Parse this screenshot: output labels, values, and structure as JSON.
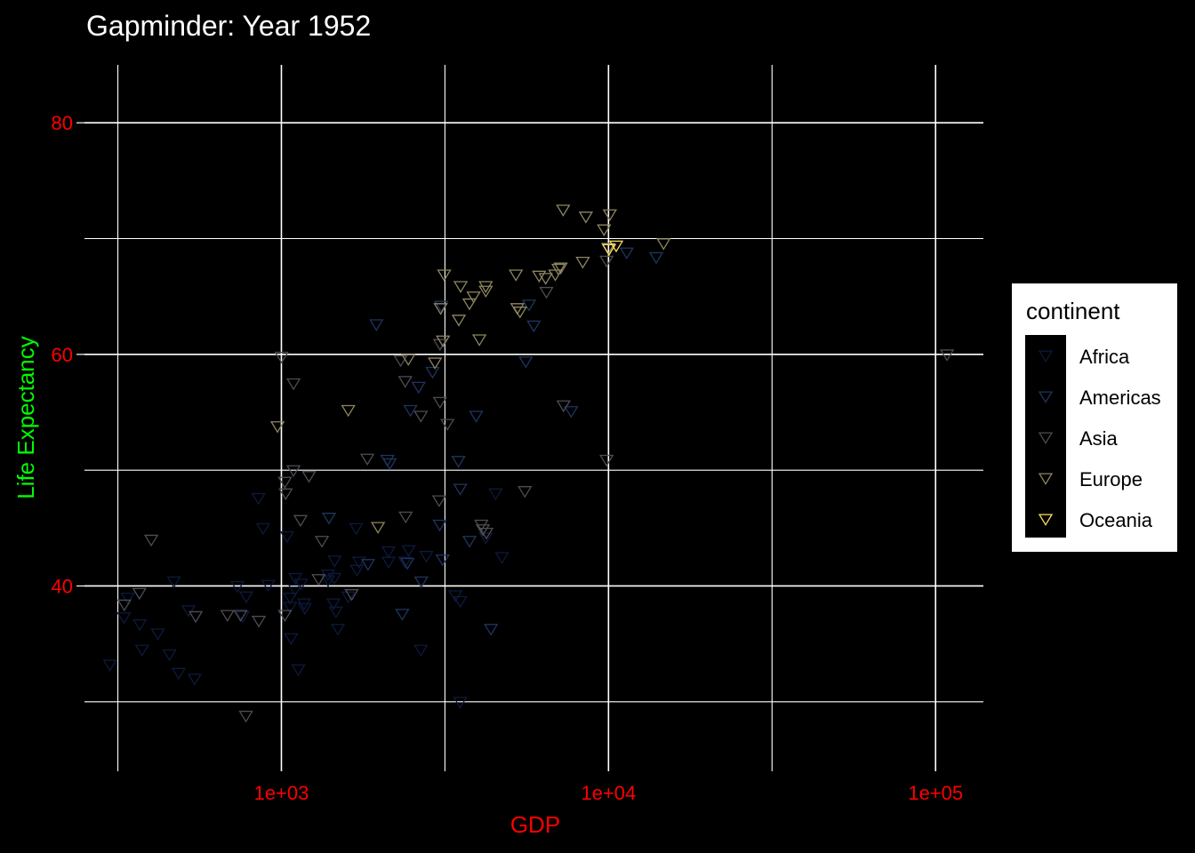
{
  "chart_data": {
    "type": "scatter",
    "title": "Gapminder: Year 1952",
    "xlabel": "GDP",
    "ylabel": "Life Expectancy",
    "x_scale": "log10",
    "xlim": [
      250,
      140000
    ],
    "ylim": [
      24,
      85
    ],
    "x_ticks": [
      1000,
      10000,
      100000
    ],
    "x_tick_labels": [
      "1e+03",
      "1e+04",
      "1e+05"
    ],
    "y_ticks": [
      40,
      60,
      80
    ],
    "y_tick_labels": [
      "40",
      "60",
      "80"
    ],
    "grid": true,
    "marker": "triangle-down-open",
    "legend": {
      "title": "continent",
      "position": "right",
      "entries": [
        "Africa",
        "Americas",
        "Asia",
        "Europe",
        "Oceania"
      ]
    },
    "colors": {
      "background": "#000000",
      "grid": "#ffffff",
      "tick_labels": "#ff0000",
      "xlabel": "#ff0000",
      "ylabel": "#00ff00",
      "title": "#ffffff",
      "Africa": "#0d1a3e",
      "Americas": "#1f3561",
      "Asia": "#4d4d54",
      "Europe": "#8e8660",
      "Oceania": "#ffe066"
    },
    "series": [
      {
        "name": "Africa",
        "points": [
          [
            2449,
            43.1
          ],
          [
            3521,
            30.0
          ],
          [
            1063,
            38.2
          ],
          [
            851,
            47.6
          ],
          [
            543,
            32.0
          ],
          [
            339,
            39.0
          ],
          [
            1173,
            38.5
          ],
          [
            1071,
            35.5
          ],
          [
            1179,
            38.1
          ],
          [
            1103,
            40.7
          ],
          [
            781,
            39.1
          ],
          [
            2126,
            42.1
          ],
          [
            1389,
            40.5
          ],
          [
            2670,
            34.5
          ],
          [
            375,
            34.5
          ],
          [
            419,
            35.9
          ],
          [
            3521,
            38.7
          ],
          [
            455,
            34.1
          ],
          [
            520,
            37.9
          ],
          [
            911,
            40.1
          ],
          [
            1127,
            32.8
          ],
          [
            1726,
            42.1
          ],
          [
            2775,
            42.6
          ],
          [
            299,
            33.2
          ],
          [
            2387,
            42.1
          ],
          [
            1443,
            38.5
          ],
          [
            369,
            36.7
          ],
          [
            1601,
            39.1
          ],
          [
            1702,
            41.4
          ],
          [
            1455,
            42.2
          ],
          [
            1041,
            44.3
          ],
          [
            762,
            37.4
          ],
          [
            1488,
            36.3
          ],
          [
            4725,
            42.5
          ],
          [
            1388,
            41.0
          ],
          [
            3405,
            39.2
          ],
          [
            330,
            37.3
          ],
          [
            879,
            45.0
          ],
          [
            1102,
            39.7
          ],
          [
            1452,
            40.7
          ],
          [
            4519,
            48.0
          ],
          [
            2126,
            43.0
          ],
          [
            1693,
            45.0
          ],
          [
            1468,
            37.8
          ],
          [
            1063,
            39.0
          ],
          [
            734,
            40.0
          ],
          [
            1148,
            40.2
          ],
          [
            469,
            40.4
          ],
          [
            485,
            32.5
          ],
          [
            4217,
            44.2
          ]
        ]
      },
      {
        "name": "Americas",
        "points": [
          [
            5911,
            62.5
          ],
          [
            2677,
            40.4
          ],
          [
            2109,
            50.9
          ],
          [
            11367,
            68.8
          ],
          [
            3940,
            54.7
          ],
          [
            2144,
            50.6
          ],
          [
            2627,
            57.2
          ],
          [
            5587,
            59.4
          ],
          [
            1398,
            45.9
          ],
          [
            3522,
            48.4
          ],
          [
            3048,
            45.3
          ],
          [
            2428,
            42.0
          ],
          [
            2342,
            37.6
          ],
          [
            1840,
            41.9
          ],
          [
            2898,
            58.5
          ],
          [
            3478,
            50.8
          ],
          [
            3112,
            42.3
          ],
          [
            2480,
            55.2
          ],
          [
            1952,
            62.6
          ],
          [
            3759,
            43.9
          ],
          [
            5716,
            64.3
          ],
          [
            7689,
            55.1
          ],
          [
            13990,
            68.4
          ],
          [
            4372,
            36.3
          ],
          [
            3081,
            64.2
          ]
        ]
      },
      {
        "name": "Asia",
        "points": [
          [
            779,
            28.8
          ],
          [
            9867,
            50.9
          ],
          [
            684,
            37.5
          ],
          [
            368,
            39.4
          ],
          [
            400,
            44.0
          ],
          [
            3054,
            60.9
          ],
          [
            547,
            37.4
          ],
          [
            750,
            37.5
          ],
          [
            3036,
            47.4
          ],
          [
            4129,
            44.9
          ],
          [
            4086,
            45.3
          ],
          [
            6460,
            65.4
          ],
          [
            1089,
            50.0
          ],
          [
            1089,
            57.5
          ],
          [
            2399,
            46.0
          ],
          [
            3054,
            55.9
          ],
          [
            7289,
            55.6
          ],
          [
            1031,
            48.0
          ],
          [
            1640,
            39.3
          ],
          [
            1214,
            49.5
          ],
          [
            108382,
            60.0
          ],
          [
            3217,
            54.0
          ],
          [
            853,
            37.0
          ],
          [
            4234,
            44.6
          ],
          [
            331,
            38.4
          ],
          [
            2391,
            57.7
          ],
          [
            5551,
            48.2
          ],
          [
            1831,
            51.0
          ],
          [
            9868,
            68.1
          ],
          [
            2315,
            59.5
          ],
          [
            1025,
            37.5
          ],
          [
            1144,
            45.7
          ],
          [
            2670,
            54.7
          ],
          [
            1001,
            59.8
          ],
          [
            1025,
            49.0
          ],
          [
            1300,
            40.6
          ],
          [
            1330,
            43.9
          ]
        ]
      },
      {
        "name": "Europe",
        "points": [
          [
            1601,
            55.2
          ],
          [
            6137,
            66.8
          ],
          [
            8343,
            68.0
          ],
          [
            973,
            53.8
          ],
          [
            2444,
            59.6
          ],
          [
            3119,
            61.2
          ],
          [
            6876,
            66.9
          ],
          [
            9692,
            70.8
          ],
          [
            6425,
            66.6
          ],
          [
            7030,
            67.4
          ],
          [
            7144,
            67.5
          ],
          [
            3531,
            65.9
          ],
          [
            5264,
            64.0
          ],
          [
            7268,
            72.5
          ],
          [
            5211,
            66.9
          ],
          [
            4215,
            65.9
          ],
          [
            2948,
            59.3
          ],
          [
            3068,
            64.0
          ],
          [
            10095,
            72.1
          ],
          [
            4029,
            61.3
          ],
          [
            3145,
            66.9
          ],
          [
            3869,
            65.0
          ],
          [
            4216,
            65.5
          ],
          [
            5363,
            63.7
          ],
          [
            3758,
            64.4
          ],
          [
            1974,
            45.1
          ],
          [
            3487,
            63.0
          ],
          [
            8528,
            71.9
          ],
          [
            14734,
            69.6
          ],
          [
            9980,
            69.2
          ]
        ]
      },
      {
        "name": "Oceania",
        "points": [
          [
            10040,
            69.1
          ],
          [
            10557,
            69.4
          ]
        ]
      }
    ]
  }
}
